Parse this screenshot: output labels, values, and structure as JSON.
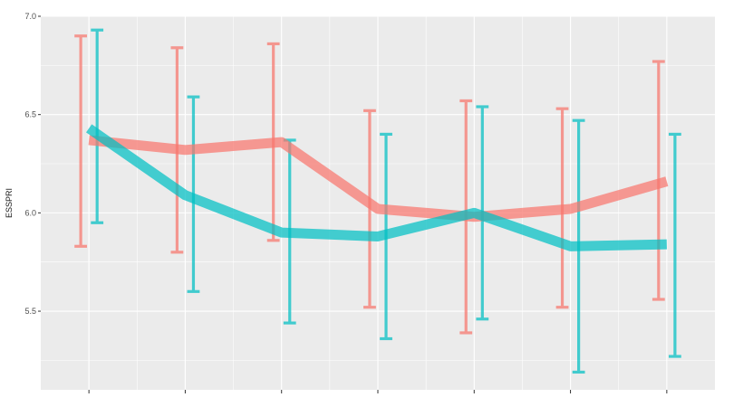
{
  "chart_data": {
    "type": "line",
    "title": "",
    "xlabel": "",
    "ylabel": "ESSPRI",
    "ylim": [
      5.1,
      7.0
    ],
    "grid": true,
    "x": [
      1,
      2,
      3,
      4,
      5,
      6,
      7
    ],
    "x_tick_labels": [
      "",
      "",
      "",
      "",
      "",
      "",
      ""
    ],
    "y_ticks": [
      5.5,
      6.0,
      6.5,
      7.0
    ],
    "y_tick_labels": [
      "5.5",
      "6.0",
      "6.5",
      "7.0"
    ],
    "series": [
      {
        "color": "#F8766D",
        "values": [
          6.37,
          6.32,
          6.36,
          6.02,
          5.98,
          6.02,
          6.16
        ],
        "lower": [
          5.83,
          5.8,
          5.86,
          5.52,
          5.39,
          5.52,
          5.56
        ],
        "upper": [
          6.9,
          6.84,
          6.86,
          6.52,
          6.57,
          6.53,
          6.77
        ]
      },
      {
        "color": "#00BFC4",
        "values": [
          6.43,
          6.09,
          5.9,
          5.88,
          6.0,
          5.83,
          5.84
        ],
        "lower": [
          5.95,
          5.6,
          5.44,
          5.36,
          5.46,
          5.19,
          5.27
        ],
        "upper": [
          6.93,
          6.59,
          6.37,
          6.4,
          6.54,
          6.47,
          6.4
        ]
      }
    ]
  }
}
